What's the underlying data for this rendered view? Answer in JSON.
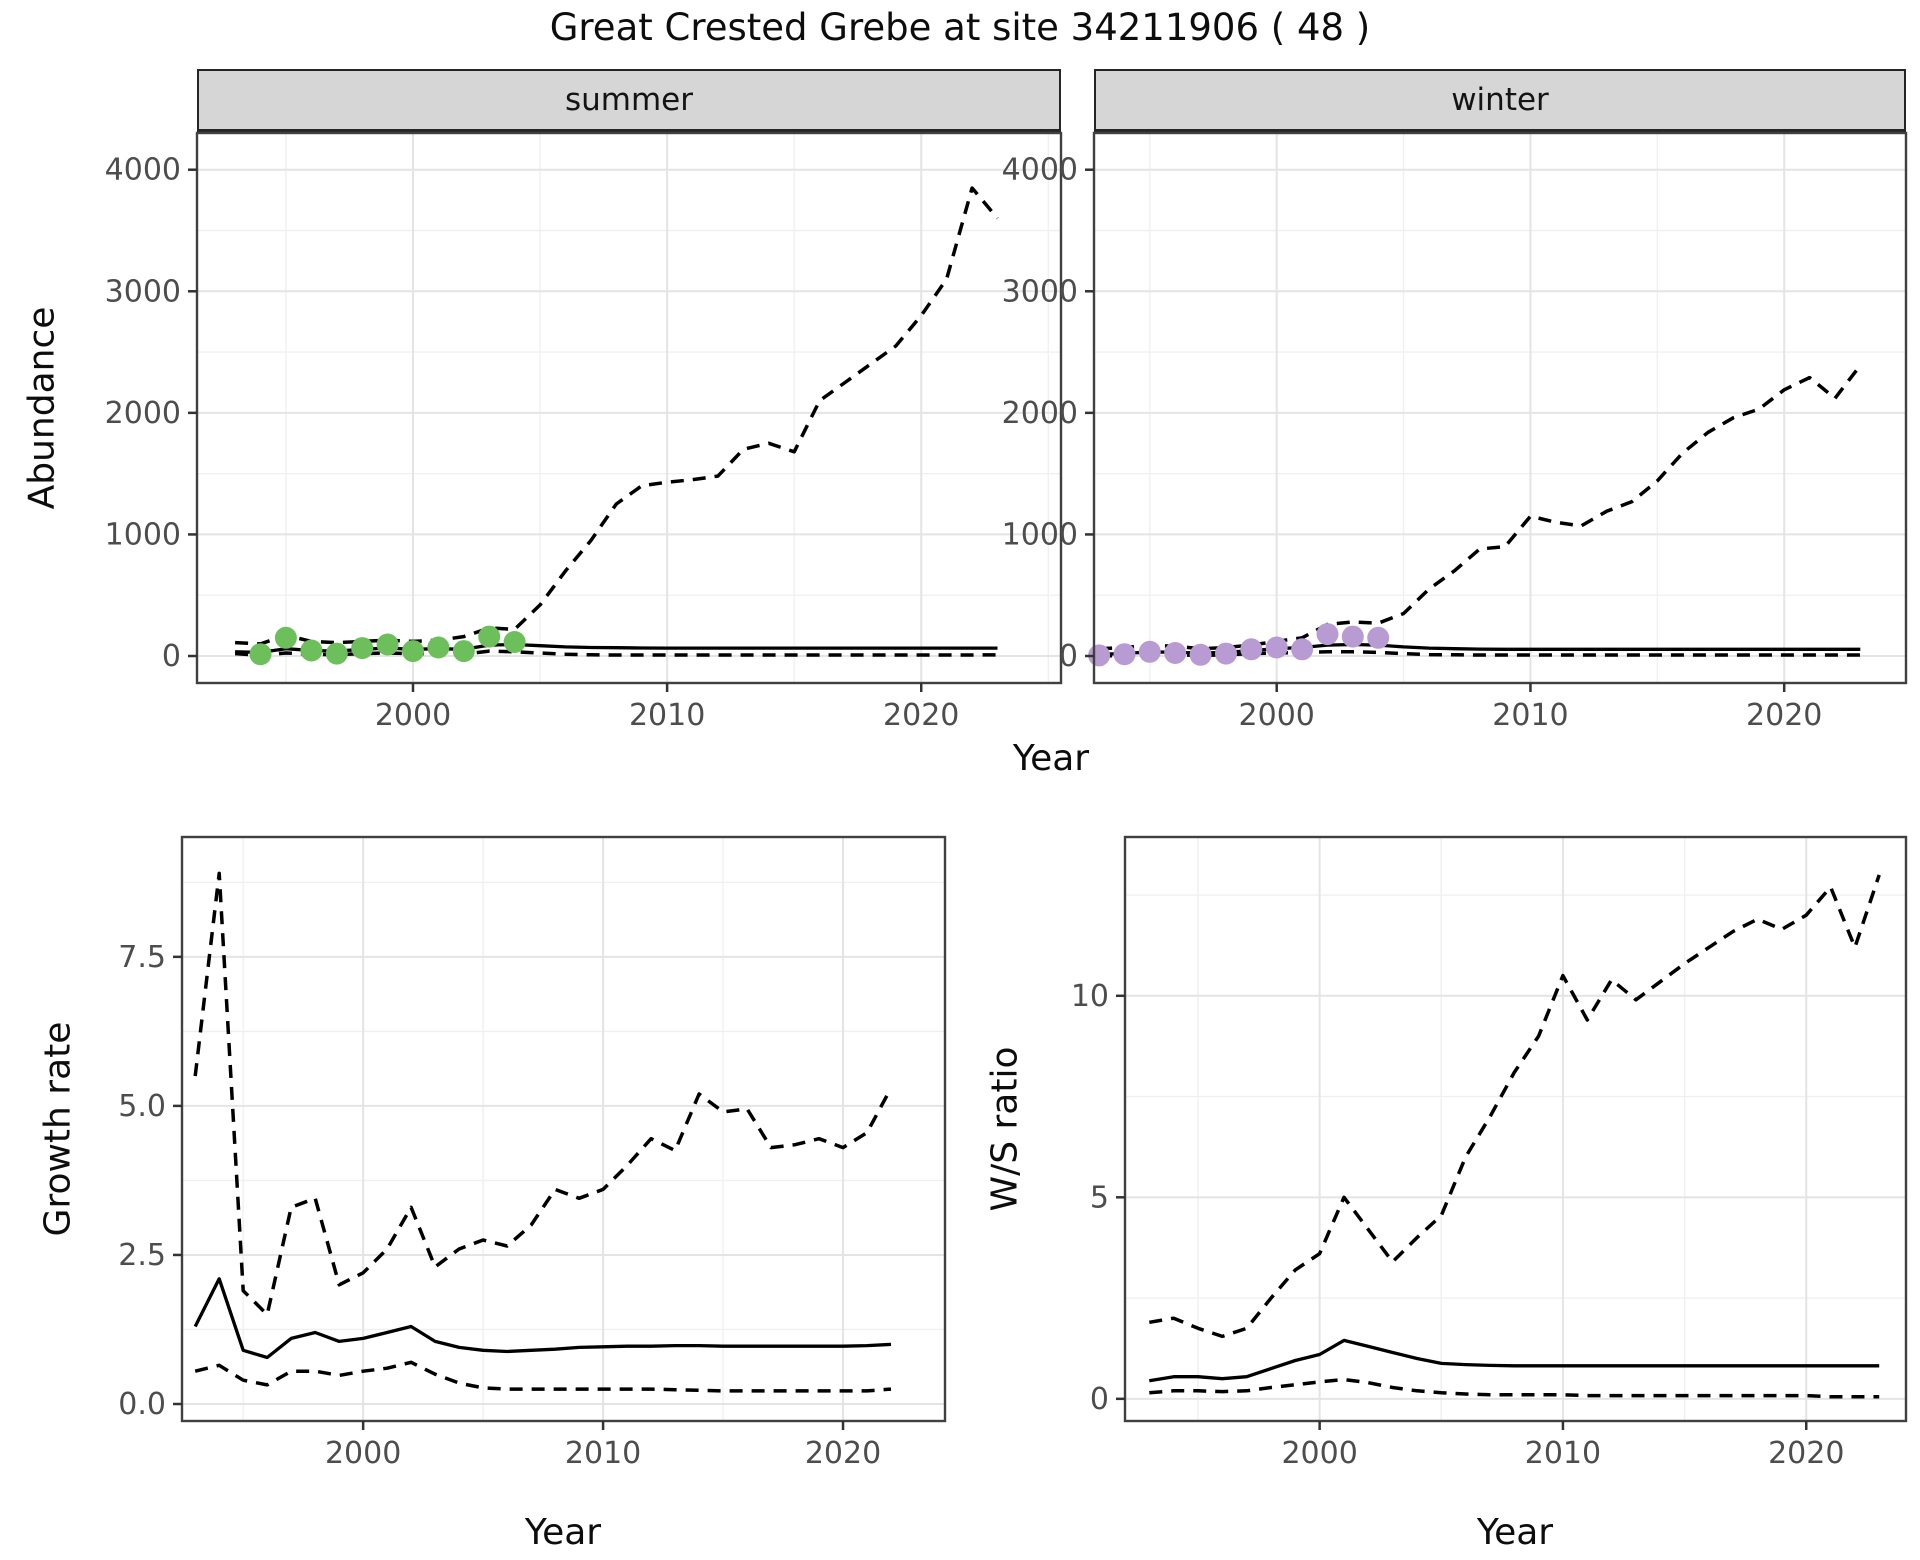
{
  "title": "Great Crested Grebe at site 34211906 ( 48 )",
  "labels": {
    "year": "Year",
    "abundance": "Abundance",
    "growth_rate": "Growth rate",
    "ws_ratio": "W/S ratio"
  },
  "colors": {
    "summer_point": "#6cbf5b",
    "winter_point": "#b99bd3",
    "line": "#000000",
    "strip_bg": "#d6d6d6",
    "panel_border": "#404040",
    "grid_major": "#e4e4e4",
    "grid_minor": "#f0f0f0",
    "axis_text": "#4d4d4d"
  },
  "chart_data": [
    {
      "id": "abundance_summer",
      "type": "line",
      "title_strip": "summer",
      "xlabel": "Year",
      "ylabel": "Abundance",
      "xlim": [
        1991.5,
        2025.5
      ],
      "ylim": [
        -222,
        4302
      ],
      "xticks": [
        2000,
        2010,
        2020
      ],
      "xtick_labels": [
        "2000",
        "2010",
        "2020"
      ],
      "xticks_minor": [
        1995,
        2005,
        2015,
        2025
      ],
      "yticks": [
        0,
        1000,
        2000,
        3000,
        4000
      ],
      "ytick_labels": [
        "0",
        "1000",
        "2000",
        "3000",
        "4000"
      ],
      "yticks_minor": [
        500,
        1500,
        2500,
        3500
      ],
      "grid": true,
      "legend": "none",
      "x": [
        1993,
        1994,
        1995,
        1996,
        1997,
        1998,
        1999,
        2000,
        2001,
        2002,
        2003,
        2004,
        2005,
        2006,
        2007,
        2008,
        2009,
        2010,
        2011,
        2012,
        2013,
        2014,
        2015,
        2016,
        2017,
        2018,
        2019,
        2020,
        2021,
        2022,
        2023
      ],
      "series": [
        {
          "name": "upper_ci",
          "style": "dashed",
          "values": [
            110,
            100,
            170,
            120,
            110,
            120,
            130,
            120,
            130,
            160,
            230,
            220,
            420,
            700,
            950,
            1250,
            1400,
            1430,
            1450,
            1480,
            1700,
            1750,
            1680,
            2100,
            2250,
            2400,
            2550,
            2800,
            3100,
            3850,
            3600
          ]
        },
        {
          "name": "fit",
          "style": "solid",
          "values": [
            35,
            30,
            60,
            45,
            40,
            55,
            65,
            55,
            60,
            55,
            90,
            95,
            85,
            75,
            70,
            68,
            66,
            65,
            65,
            65,
            65,
            65,
            65,
            65,
            65,
            65,
            65,
            65,
            65,
            65,
            65
          ]
        },
        {
          "name": "lower_ci",
          "style": "dashed",
          "values": [
            20,
            5,
            25,
            15,
            10,
            20,
            25,
            20,
            20,
            15,
            40,
            35,
            25,
            15,
            10,
            8,
            8,
            8,
            8,
            8,
            8,
            8,
            8,
            8,
            8,
            8,
            8,
            8,
            8,
            8,
            10
          ]
        }
      ],
      "points": {
        "name": "observed_summer",
        "color": "#6cbf5b",
        "x": [
          1994,
          1995,
          1996,
          1997,
          1998,
          1999,
          2000,
          2001,
          2002,
          2003,
          2004
        ],
        "y": [
          15,
          150,
          45,
          20,
          65,
          95,
          40,
          70,
          40,
          160,
          115
        ]
      }
    },
    {
      "id": "abundance_winter",
      "type": "line",
      "title_strip": "winter",
      "xlabel": "Year",
      "ylabel": "Abundance",
      "xlim": [
        1992.8,
        2024.8
      ],
      "ylim": [
        -222,
        4302
      ],
      "xticks": [
        2000,
        2010,
        2020
      ],
      "xtick_labels": [
        "2000",
        "2010",
        "2020"
      ],
      "xticks_minor": [
        1995,
        2005,
        2015
      ],
      "yticks": [
        0,
        1000,
        2000,
        3000,
        4000
      ],
      "ytick_labels": [
        "0",
        "1000",
        "2000",
        "3000",
        "4000"
      ],
      "yticks_minor": [
        500,
        1500,
        2500,
        3500
      ],
      "grid": true,
      "legend": "none",
      "x": [
        1993,
        1994,
        1995,
        1996,
        1997,
        1998,
        1999,
        2000,
        2001,
        2002,
        2003,
        2004,
        2005,
        2006,
        2007,
        2008,
        2009,
        2010,
        2011,
        2012,
        2013,
        2014,
        2015,
        2016,
        2017,
        2018,
        2019,
        2020,
        2021,
        2022,
        2023
      ],
      "series": [
        {
          "name": "upper_ci",
          "style": "dashed",
          "values": [
            60,
            70,
            90,
            80,
            60,
            70,
            90,
            120,
            150,
            260,
            280,
            270,
            350,
            550,
            700,
            880,
            900,
            1150,
            1100,
            1070,
            1190,
            1270,
            1440,
            1670,
            1840,
            1960,
            2030,
            2190,
            2290,
            2120,
            2390
          ]
        },
        {
          "name": "fit",
          "style": "solid",
          "values": [
            15,
            20,
            35,
            30,
            25,
            30,
            45,
            60,
            70,
            90,
            95,
            90,
            75,
            65,
            60,
            57,
            55,
            55,
            55,
            55,
            55,
            55,
            55,
            55,
            55,
            55,
            55,
            55,
            55,
            55,
            55
          ]
        },
        {
          "name": "lower_ci",
          "style": "dashed",
          "values": [
            0,
            5,
            15,
            10,
            5,
            10,
            20,
            25,
            30,
            35,
            35,
            30,
            20,
            12,
            10,
            8,
            8,
            8,
            8,
            8,
            8,
            8,
            8,
            8,
            8,
            8,
            8,
            8,
            8,
            8,
            8
          ]
        }
      ],
      "points": {
        "name": "observed_winter",
        "color": "#b99bd3",
        "x": [
          1993,
          1994,
          1995,
          1996,
          1997,
          1998,
          1999,
          2000,
          2001,
          2002,
          2003,
          2004
        ],
        "y": [
          5,
          15,
          35,
          25,
          10,
          20,
          55,
          70,
          55,
          180,
          160,
          150
        ]
      }
    },
    {
      "id": "growth_rate",
      "type": "line",
      "title_strip": "",
      "xlabel": "Year",
      "ylabel": "Growth rate",
      "xlim": [
        1992.45,
        2024.25
      ],
      "ylim": [
        -0.285,
        9.51
      ],
      "xticks": [
        2000,
        2010,
        2020
      ],
      "xtick_labels": [
        "2000",
        "2010",
        "2020"
      ],
      "xticks_minor": [
        1995,
        2005,
        2015
      ],
      "yticks": [
        0.0,
        2.5,
        5.0,
        7.5
      ],
      "ytick_labels": [
        "0.0",
        "2.5",
        "5.0",
        "7.5"
      ],
      "yticks_minor": [
        1.25,
        3.75,
        6.25,
        8.75
      ],
      "grid": true,
      "legend": "none",
      "x": [
        1993,
        1994,
        1995,
        1996,
        1997,
        1998,
        1999,
        2000,
        2001,
        2002,
        2003,
        2004,
        2005,
        2006,
        2007,
        2008,
        2009,
        2010,
        2011,
        2012,
        2013,
        2014,
        2015,
        2016,
        2017,
        2018,
        2019,
        2020,
        2021,
        2022
      ],
      "series": [
        {
          "name": "upper_ci",
          "style": "dashed",
          "values": [
            5.5,
            8.9,
            1.9,
            1.5,
            3.3,
            3.45,
            2.0,
            2.2,
            2.6,
            3.3,
            2.3,
            2.6,
            2.75,
            2.65,
            3.0,
            3.6,
            3.45,
            3.6,
            4.0,
            4.45,
            4.25,
            5.2,
            4.9,
            4.95,
            4.3,
            4.35,
            4.45,
            4.3,
            4.55,
            5.3
          ]
        },
        {
          "name": "fit",
          "style": "solid",
          "values": [
            1.3,
            2.1,
            0.9,
            0.78,
            1.1,
            1.2,
            1.05,
            1.1,
            1.2,
            1.3,
            1.05,
            0.95,
            0.9,
            0.88,
            0.9,
            0.92,
            0.95,
            0.96,
            0.97,
            0.97,
            0.98,
            0.98,
            0.97,
            0.97,
            0.97,
            0.97,
            0.97,
            0.97,
            0.98,
            1.0
          ]
        },
        {
          "name": "lower_ci",
          "style": "dashed",
          "values": [
            0.55,
            0.65,
            0.4,
            0.32,
            0.55,
            0.55,
            0.48,
            0.55,
            0.6,
            0.7,
            0.5,
            0.35,
            0.27,
            0.25,
            0.25,
            0.25,
            0.25,
            0.25,
            0.25,
            0.25,
            0.24,
            0.23,
            0.22,
            0.22,
            0.22,
            0.22,
            0.22,
            0.22,
            0.22,
            0.25
          ]
        }
      ],
      "points": null
    },
    {
      "id": "ws_ratio",
      "type": "line",
      "title_strip": "",
      "xlabel": "Year",
      "ylabel": "W/S ratio",
      "xlim": [
        1992.0,
        2024.1
      ],
      "ylim": [
        -0.55,
        13.94
      ],
      "xticks": [
        2000,
        2010,
        2020
      ],
      "xtick_labels": [
        "2000",
        "2010",
        "2020"
      ],
      "xticks_minor": [
        1995,
        2005,
        2015
      ],
      "yticks": [
        0,
        5,
        10
      ],
      "ytick_labels": [
        "0",
        "5",
        "10"
      ],
      "yticks_minor": [
        2.5,
        7.5,
        12.5
      ],
      "grid": true,
      "legend": "none",
      "x": [
        1993,
        1994,
        1995,
        1996,
        1997,
        1998,
        1999,
        2000,
        2001,
        2002,
        2003,
        2004,
        2005,
        2006,
        2007,
        2008,
        2009,
        2010,
        2011,
        2012,
        2013,
        2014,
        2015,
        2016,
        2017,
        2018,
        2019,
        2020,
        2021,
        2022,
        2023
      ],
      "series": [
        {
          "name": "upper_ci",
          "style": "dashed",
          "values": [
            1.9,
            2.0,
            1.75,
            1.55,
            1.75,
            2.5,
            3.2,
            3.6,
            5.0,
            4.2,
            3.4,
            4.0,
            4.55,
            6.0,
            7.0,
            8.1,
            9.0,
            10.5,
            9.4,
            10.4,
            9.9,
            10.35,
            10.8,
            11.2,
            11.6,
            11.9,
            11.65,
            12.0,
            12.7,
            11.2,
            13.0
          ]
        },
        {
          "name": "fit",
          "style": "solid",
          "values": [
            0.45,
            0.55,
            0.55,
            0.5,
            0.55,
            0.75,
            0.95,
            1.1,
            1.45,
            1.3,
            1.15,
            1.0,
            0.88,
            0.85,
            0.83,
            0.82,
            0.82,
            0.82,
            0.82,
            0.82,
            0.82,
            0.82,
            0.82,
            0.82,
            0.82,
            0.82,
            0.82,
            0.82,
            0.82,
            0.82,
            0.82
          ]
        },
        {
          "name": "lower_ci",
          "style": "dashed",
          "values": [
            0.15,
            0.2,
            0.2,
            0.18,
            0.2,
            0.28,
            0.35,
            0.42,
            0.48,
            0.4,
            0.28,
            0.2,
            0.15,
            0.12,
            0.1,
            0.1,
            0.1,
            0.1,
            0.08,
            0.08,
            0.08,
            0.08,
            0.08,
            0.08,
            0.08,
            0.08,
            0.08,
            0.08,
            0.05,
            0.05,
            0.05
          ]
        }
      ],
      "points": null
    }
  ]
}
